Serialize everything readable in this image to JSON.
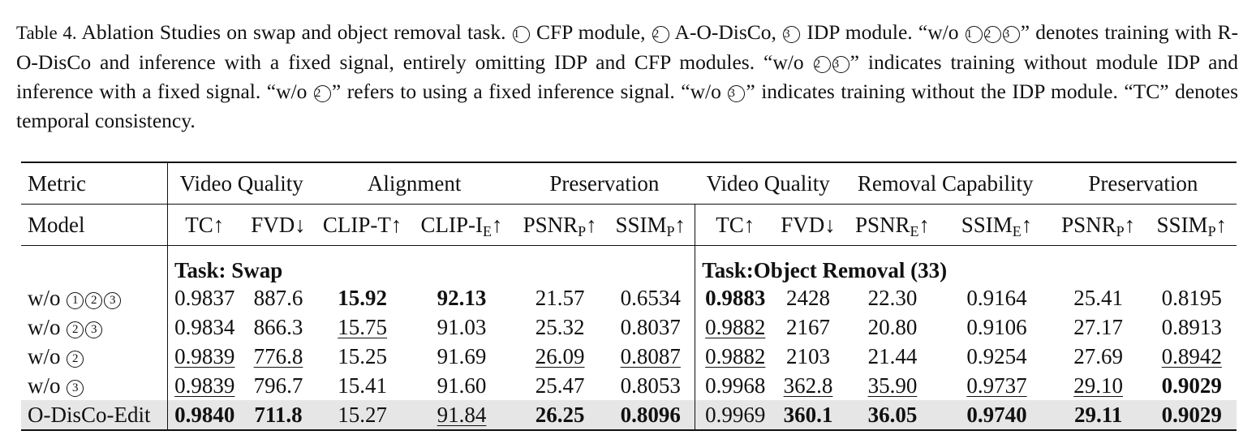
{
  "caption": {
    "label": "Table 4.",
    "seg1": " Ablation Studies on swap and object removal task. ",
    "c1a": "1",
    "seg2": " CFP module, ",
    "c2a": "2",
    "seg3": " A-O-DisCo, ",
    "c3a": "3",
    "seg4": " IDP module. “w/o ",
    "c1b": "1",
    "c2b": "2",
    "c3b": "3",
    "seg5": "” denotes training with R-O-DisCo and inference with a fixed signal, entirely omitting IDP and CFP modules. “w/o ",
    "c2c": "2",
    "c3c": "3",
    "seg6": "” indicates training without module IDP and inference with a fixed signal. “w/o ",
    "c2d": "2",
    "seg7": "” refers to using a fixed inference signal. “w/o ",
    "c3d": "3",
    "seg8": "” indicates training without the IDP module. “TC” denotes temporal consistency."
  },
  "table": {
    "metric_label": "Metric",
    "groups": {
      "swap_video_quality": "Video Quality",
      "alignment": "Alignment",
      "swap_preservation": "Preservation",
      "rem_video_quality": "Video Quality",
      "removal_capability": "Removal Capability",
      "rem_preservation": "Preservation"
    },
    "model_label": "Model",
    "cols": {
      "tc": "TC↑",
      "fvd": "FVD↓",
      "clip_t": "CLIP-T↑",
      "clip_i_base": "CLIP-I",
      "clip_i_sub": "E",
      "clip_i_arrow": "↑",
      "psnr_p_base": "PSNR",
      "psnr_p_sub": "P",
      "psnr_p_arrow": "↑",
      "ssim_p_base": "SSIM",
      "ssim_p_sub": "P",
      "ssim_p_arrow": "↑",
      "tc2": "TC↑",
      "fvd2": "FVD↓",
      "psnr_e_base": "PSNR",
      "psnr_e_sub": "E",
      "psnr_e_arrow": "↑",
      "ssim_e_base": "SSIM",
      "ssim_e_sub": "E",
      "ssim_e_arrow": "↑",
      "psnr_p2_base": "PSNR",
      "psnr_p2_sub": "P",
      "psnr_p2_arrow": "↑",
      "ssim_p2_base": "SSIM",
      "ssim_p2_sub": "P",
      "ssim_p2_arrow": "↑"
    },
    "task_swap": "Task: Swap",
    "task_removal": "Task:Object Removal (33)",
    "rows": [
      {
        "model_prefix": "w/o ",
        "circles": [
          "1",
          "2",
          "3"
        ],
        "model": "",
        "values": [
          "0.9837",
          "887.6",
          "15.92",
          "92.13",
          "21.57",
          "0.6534",
          "0.9883",
          "2428",
          "22.30",
          "0.9164",
          "25.41",
          "0.8195"
        ]
      },
      {
        "model_prefix": "w/o ",
        "circles": [
          "2",
          "3"
        ],
        "model": "",
        "values": [
          "0.9834",
          "866.3",
          "15.75",
          "91.03",
          "25.32",
          "0.8037",
          "0.9882",
          "2167",
          "20.80",
          "0.9106",
          "27.17",
          "0.8913"
        ]
      },
      {
        "model_prefix": "w/o ",
        "circles": [
          "2"
        ],
        "model": "",
        "values": [
          "0.9839",
          "776.8",
          "15.25",
          "91.69",
          "26.09",
          "0.8087",
          "0.9882",
          "2103",
          "21.44",
          "0.9254",
          "27.69",
          "0.8942"
        ]
      },
      {
        "model_prefix": "w/o ",
        "circles": [
          "3"
        ],
        "model": "",
        "values": [
          "0.9839",
          "796.7",
          "15.41",
          "91.60",
          "25.47",
          "0.8053",
          "0.9968",
          "362.8",
          "35.90",
          "0.9737",
          "29.10",
          "0.9029"
        ]
      },
      {
        "model_prefix": "",
        "circles": [],
        "model": "O-DisCo-Edit",
        "values": [
          "0.9840",
          "711.8",
          "15.27",
          "91.84",
          "26.25",
          "0.8096",
          "0.9969",
          "360.1",
          "36.05",
          "0.9740",
          "29.11",
          "0.9029"
        ]
      }
    ]
  }
}
